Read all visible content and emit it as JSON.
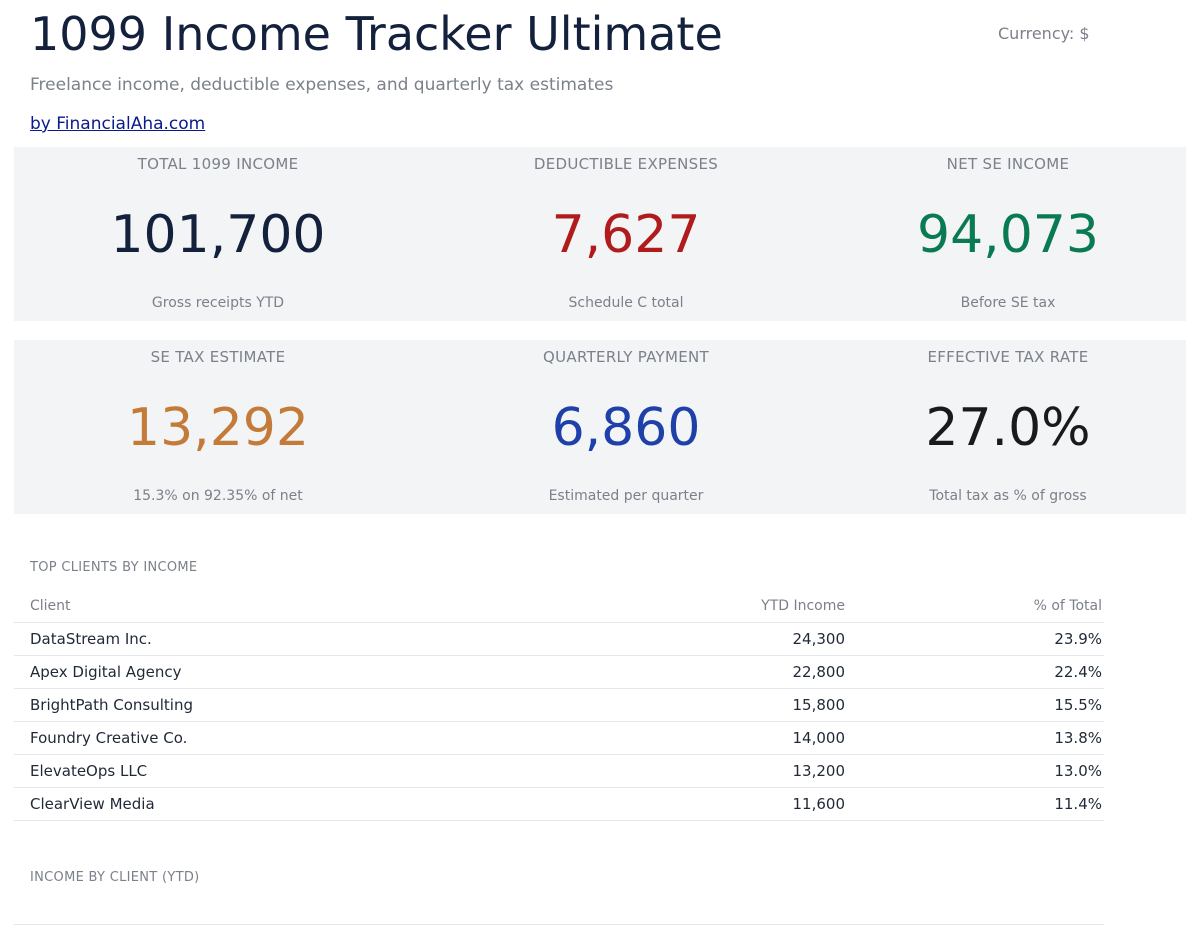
{
  "header": {
    "title": "1099 Income Tracker Ultimate",
    "subtitle": "Freelance income, deductible expenses, and quarterly tax estimates",
    "byline": "by FinancialAha.com",
    "currency": "Currency: $"
  },
  "kpis": {
    "row1": [
      {
        "label": "TOTAL 1099 INCOME",
        "value": "101,700",
        "note": "Gross receipts YTD",
        "color": "#14213d"
      },
      {
        "label": "DEDUCTIBLE EXPENSES",
        "value": "7,627",
        "note": "Schedule C total",
        "color": "#b01c1c"
      },
      {
        "label": "NET SE INCOME",
        "value": "94,073",
        "note": "Before SE tax",
        "color": "#0a7a52"
      }
    ],
    "row2": [
      {
        "label": "SE TAX ESTIMATE",
        "value": "13,292",
        "note": "15.3% on 92.35% of net",
        "color": "#c47a38"
      },
      {
        "label": "QUARTERLY PAYMENT",
        "value": "6,860",
        "note": "Estimated per quarter",
        "color": "#1e40a8"
      },
      {
        "label": "EFFECTIVE TAX RATE",
        "value": "27.0%",
        "note": "Total tax as % of gross",
        "color": "#1a1a1a"
      }
    ]
  },
  "clients": {
    "section_title": "TOP CLIENTS BY INCOME",
    "columns": [
      "Client",
      "YTD Income",
      "% of Total"
    ],
    "rows": [
      [
        "DataStream Inc.",
        "24,300",
        "23.9%"
      ],
      [
        "Apex Digital Agency",
        "22,800",
        "22.4%"
      ],
      [
        "BrightPath Consulting",
        "15,800",
        "15.5%"
      ],
      [
        "Foundry Creative Co.",
        "14,000",
        "13.8%"
      ],
      [
        "ElevateOps LLC",
        "13,200",
        "13.0%"
      ],
      [
        "ClearView Media",
        "11,600",
        "11.4%"
      ]
    ]
  },
  "chart_section": {
    "title": "INCOME BY CLIENT (YTD)"
  }
}
